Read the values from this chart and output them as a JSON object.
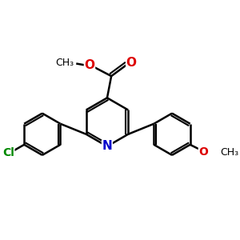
{
  "bg_color": "#ffffff",
  "bond_color": "#000000",
  "N_color": "#0000cc",
  "O_color": "#dd0000",
  "Cl_color": "#008800",
  "bond_width": 1.8,
  "dbo": 0.055,
  "figsize": [
    3.0,
    3.0
  ],
  "dpi": 100,
  "xlim": [
    -2.4,
    2.4
  ],
  "ylim": [
    -2.2,
    2.0
  ]
}
